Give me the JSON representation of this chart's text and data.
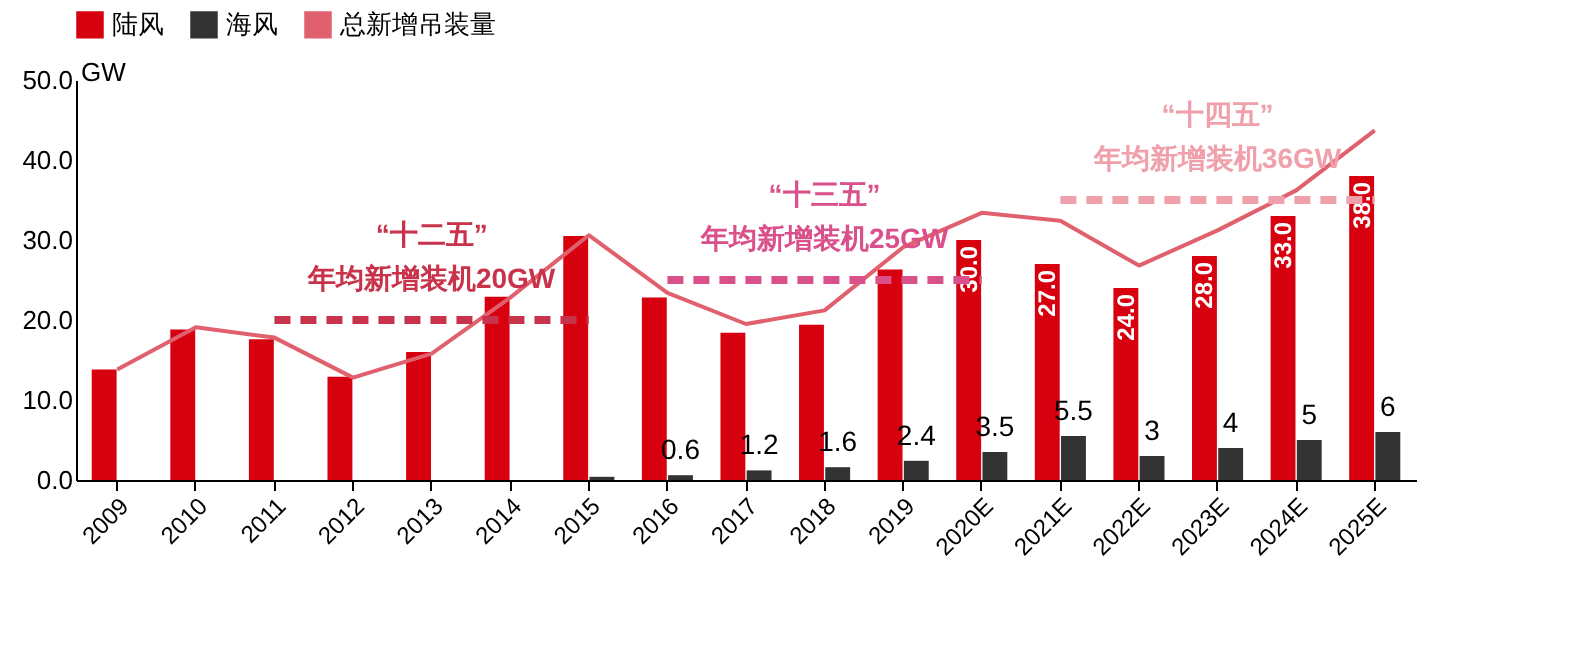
{
  "chart_data": {
    "type": "bar",
    "ylabel": "GW",
    "categories": [
      "2009",
      "2010",
      "2011",
      "2012",
      "2013",
      "2014",
      "2015",
      "2016",
      "2017",
      "2018",
      "2019",
      "2020E",
      "2021E",
      "2022E",
      "2023E",
      "2024E",
      "2025E"
    ],
    "series": [
      {
        "name": "陆风",
        "color": "#d7000f",
        "values": [
          13.8,
          18.8,
          17.6,
          12.9,
          16.0,
          22.9,
          30.5,
          22.8,
          18.4,
          19.4,
          26.3,
          30.0,
          27.0,
          24.0,
          28.0,
          33.0,
          38.0
        ],
        "value_labels": [
          null,
          null,
          null,
          null,
          null,
          null,
          null,
          null,
          null,
          null,
          null,
          "30.0",
          "27.0",
          "24.0",
          "28.0",
          "33.0",
          "38.0"
        ]
      },
      {
        "name": "海风",
        "color": "#333333",
        "values": [
          0,
          0,
          null,
          null,
          null,
          null,
          0.4,
          0.6,
          1.2,
          1.6,
          2.4,
          3.5,
          5.5,
          3,
          4,
          5,
          6
        ],
        "value_labels": [
          null,
          null,
          null,
          null,
          null,
          null,
          null,
          "0.6",
          "1.2",
          "1.6",
          "2.4",
          "3.5",
          "5.5",
          "3",
          "4",
          "5",
          "6"
        ]
      },
      {
        "name": "总新增吊装量",
        "type": "line",
        "color": "#e0606e",
        "values": [
          13.8,
          19.1,
          17.8,
          12.8,
          15.8,
          22.8,
          30.6,
          23.4,
          19.5,
          21.2,
          29.1,
          33.4,
          32.4,
          26.8,
          31.2,
          36.2,
          43.7
        ]
      },
      {
        "type": "line",
        "line_style": "dashed",
        "color": "#c8324a",
        "values": [
          null,
          null,
          20,
          20,
          20,
          20,
          20,
          null,
          null,
          null,
          null,
          null,
          null,
          null,
          null,
          null,
          null
        ]
      },
      {
        "type": "line",
        "line_style": "dashed",
        "color": "#d9508a",
        "values": [
          null,
          null,
          null,
          null,
          null,
          null,
          null,
          25,
          25,
          25,
          25,
          25,
          null,
          null,
          null,
          null,
          null
        ]
      },
      {
        "type": "line",
        "line_style": "dashed",
        "color": "#f0a0aa",
        "values": [
          null,
          null,
          null,
          null,
          null,
          null,
          null,
          null,
          null,
          null,
          null,
          null,
          35,
          35,
          35,
          35,
          35
        ]
      }
    ],
    "annotations": [
      "“十二五”",
      "年均新增装机20GW",
      "“十三五”",
      "年均新增装机25GW",
      "“十四五”",
      "年均新增装机36GW"
    ],
    "ylim": [
      0,
      50
    ],
    "yticks": [
      {
        "value": 0,
        "label": "0.0"
      },
      {
        "value": 10,
        "label": "10.0"
      },
      {
        "value": 20,
        "label": "20.0"
      },
      {
        "value": 30,
        "label": "30.0"
      },
      {
        "value": 40,
        "label": "40.0"
      },
      {
        "value": 50,
        "label": "50.0"
      }
    ],
    "grid": false,
    "legend": "top"
  }
}
